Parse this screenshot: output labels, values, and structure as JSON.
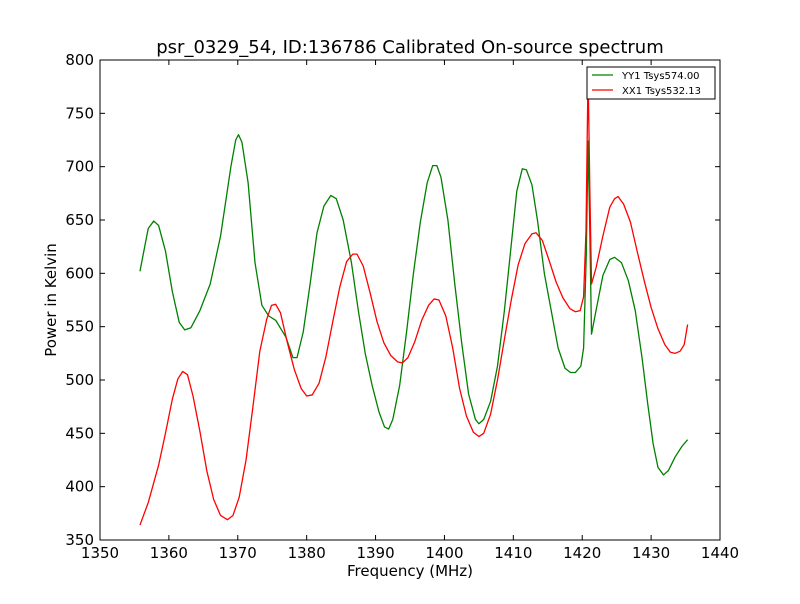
{
  "chart_data": {
    "type": "line",
    "title": "psr_0329_54, ID:136786 Calibrated On-source spectrum",
    "xlabel": "Frequency (MHz)",
    "ylabel": "Power in Kelvin",
    "xlim": [
      1350,
      1440
    ],
    "ylim": [
      350,
      800
    ],
    "xticks": [
      1350,
      1360,
      1370,
      1380,
      1390,
      1400,
      1410,
      1420,
      1430,
      1440
    ],
    "yticks": [
      350,
      400,
      450,
      500,
      550,
      600,
      650,
      700,
      750,
      800
    ],
    "grid": false,
    "legend_position": "top-right",
    "series": [
      {
        "name": "YY1 Tsys574.00",
        "color": "#008000",
        "points": [
          [
            1355.8,
            602
          ],
          [
            1357,
            642
          ],
          [
            1357.8,
            649
          ],
          [
            1358.5,
            645
          ],
          [
            1359.5,
            621
          ],
          [
            1360.5,
            583
          ],
          [
            1361.5,
            554
          ],
          [
            1362.3,
            547
          ],
          [
            1363.2,
            549
          ],
          [
            1364.5,
            565
          ],
          [
            1366,
            590
          ],
          [
            1367.5,
            635
          ],
          [
            1369,
            700
          ],
          [
            1369.7,
            725
          ],
          [
            1370.1,
            730
          ],
          [
            1370.6,
            723
          ],
          [
            1371.5,
            685
          ],
          [
            1372.5,
            610
          ],
          [
            1373.5,
            570
          ],
          [
            1374.5,
            560
          ],
          [
            1375.5,
            556
          ],
          [
            1377,
            540
          ],
          [
            1378,
            521
          ],
          [
            1378.6,
            521
          ],
          [
            1379.5,
            545
          ],
          [
            1380.5,
            590
          ],
          [
            1381.5,
            638
          ],
          [
            1382.5,
            663
          ],
          [
            1383.5,
            673
          ],
          [
            1384.3,
            670
          ],
          [
            1385.3,
            650
          ],
          [
            1386.5,
            610
          ],
          [
            1387.5,
            565
          ],
          [
            1388.5,
            525
          ],
          [
            1389.5,
            495
          ],
          [
            1390.5,
            470
          ],
          [
            1391.3,
            456
          ],
          [
            1391.9,
            454
          ],
          [
            1392.5,
            463
          ],
          [
            1393.5,
            495
          ],
          [
            1394.5,
            545
          ],
          [
            1395.5,
            600
          ],
          [
            1396.5,
            648
          ],
          [
            1397.5,
            685
          ],
          [
            1398.3,
            701
          ],
          [
            1398.9,
            701
          ],
          [
            1399.5,
            690
          ],
          [
            1400.5,
            650
          ],
          [
            1401.5,
            590
          ],
          [
            1402.5,
            535
          ],
          [
            1403.5,
            487
          ],
          [
            1404.5,
            463
          ],
          [
            1405,
            459
          ],
          [
            1405.7,
            463
          ],
          [
            1406.7,
            480
          ],
          [
            1407.7,
            513
          ],
          [
            1408.7,
            565
          ],
          [
            1409.7,
            627
          ],
          [
            1410.5,
            677
          ],
          [
            1411.3,
            698
          ],
          [
            1411.9,
            697
          ],
          [
            1412.7,
            683
          ],
          [
            1413.5,
            650
          ],
          [
            1414.5,
            600
          ],
          [
            1415.5,
            565
          ],
          [
            1416.5,
            530
          ],
          [
            1417.5,
            511
          ],
          [
            1418.3,
            507
          ],
          [
            1419,
            507
          ],
          [
            1419.8,
            513
          ],
          [
            1420.2,
            530
          ],
          [
            1420.6,
            620
          ],
          [
            1420.85,
            724
          ],
          [
            1421.1,
            640
          ],
          [
            1421.35,
            543
          ],
          [
            1422,
            565
          ],
          [
            1423,
            598
          ],
          [
            1424,
            613
          ],
          [
            1424.7,
            615
          ],
          [
            1425.7,
            610
          ],
          [
            1426.7,
            593
          ],
          [
            1427.7,
            565
          ],
          [
            1428.7,
            520
          ],
          [
            1429.5,
            478
          ],
          [
            1430.3,
            440
          ],
          [
            1431,
            418
          ],
          [
            1431.8,
            411
          ],
          [
            1432.5,
            415
          ],
          [
            1433.5,
            428
          ],
          [
            1434.5,
            438
          ],
          [
            1435.3,
            444
          ]
        ]
      },
      {
        "name": "XX1 Tsys532.13",
        "color": "#ff0000",
        "points": [
          [
            1355.8,
            364
          ],
          [
            1357,
            385
          ],
          [
            1358.5,
            420
          ],
          [
            1359.5,
            450
          ],
          [
            1360.5,
            482
          ],
          [
            1361.3,
            501
          ],
          [
            1362,
            508
          ],
          [
            1362.7,
            505
          ],
          [
            1363.5,
            485
          ],
          [
            1364.5,
            452
          ],
          [
            1365.5,
            415
          ],
          [
            1366.5,
            388
          ],
          [
            1367.5,
            373
          ],
          [
            1368.5,
            369
          ],
          [
            1369.3,
            373
          ],
          [
            1370.2,
            390
          ],
          [
            1371.2,
            425
          ],
          [
            1372.2,
            475
          ],
          [
            1373.2,
            527
          ],
          [
            1374.2,
            557
          ],
          [
            1374.9,
            570
          ],
          [
            1375.5,
            571
          ],
          [
            1376.2,
            563
          ],
          [
            1377.2,
            535
          ],
          [
            1378.2,
            510
          ],
          [
            1379.2,
            492
          ],
          [
            1380,
            485
          ],
          [
            1380.8,
            486
          ],
          [
            1381.8,
            497
          ],
          [
            1382.8,
            522
          ],
          [
            1383.8,
            555
          ],
          [
            1384.8,
            587
          ],
          [
            1385.8,
            611
          ],
          [
            1386.7,
            618
          ],
          [
            1387.3,
            618
          ],
          [
            1388.2,
            607
          ],
          [
            1389.2,
            582
          ],
          [
            1390.2,
            555
          ],
          [
            1391.2,
            535
          ],
          [
            1392.2,
            523
          ],
          [
            1393.2,
            517
          ],
          [
            1393.9,
            516
          ],
          [
            1394.7,
            521
          ],
          [
            1395.7,
            536
          ],
          [
            1396.7,
            556
          ],
          [
            1397.7,
            570
          ],
          [
            1398.5,
            576
          ],
          [
            1399.2,
            575
          ],
          [
            1400.2,
            560
          ],
          [
            1401.2,
            530
          ],
          [
            1402.2,
            492
          ],
          [
            1403.2,
            466
          ],
          [
            1404.2,
            451
          ],
          [
            1405,
            447
          ],
          [
            1405.7,
            450
          ],
          [
            1406.7,
            468
          ],
          [
            1407.7,
            500
          ],
          [
            1408.7,
            538
          ],
          [
            1409.7,
            575
          ],
          [
            1410.7,
            608
          ],
          [
            1411.7,
            628
          ],
          [
            1412.7,
            637
          ],
          [
            1413.3,
            638
          ],
          [
            1414.2,
            631
          ],
          [
            1415.2,
            612
          ],
          [
            1416.2,
            592
          ],
          [
            1417.2,
            577
          ],
          [
            1418.2,
            567
          ],
          [
            1419,
            564
          ],
          [
            1419.7,
            565
          ],
          [
            1420.2,
            578
          ],
          [
            1420.55,
            640
          ],
          [
            1420.85,
            790
          ],
          [
            1421.1,
            680
          ],
          [
            1421.35,
            590
          ],
          [
            1422,
            605
          ],
          [
            1423,
            635
          ],
          [
            1424,
            662
          ],
          [
            1424.7,
            670
          ],
          [
            1425.2,
            672
          ],
          [
            1426,
            665
          ],
          [
            1427,
            648
          ],
          [
            1428,
            620
          ],
          [
            1429,
            593
          ],
          [
            1430,
            568
          ],
          [
            1431,
            548
          ],
          [
            1432,
            533
          ],
          [
            1432.8,
            526
          ],
          [
            1433.5,
            525
          ],
          [
            1434.2,
            527
          ],
          [
            1434.8,
            533
          ],
          [
            1435.3,
            552
          ]
        ]
      }
    ]
  }
}
